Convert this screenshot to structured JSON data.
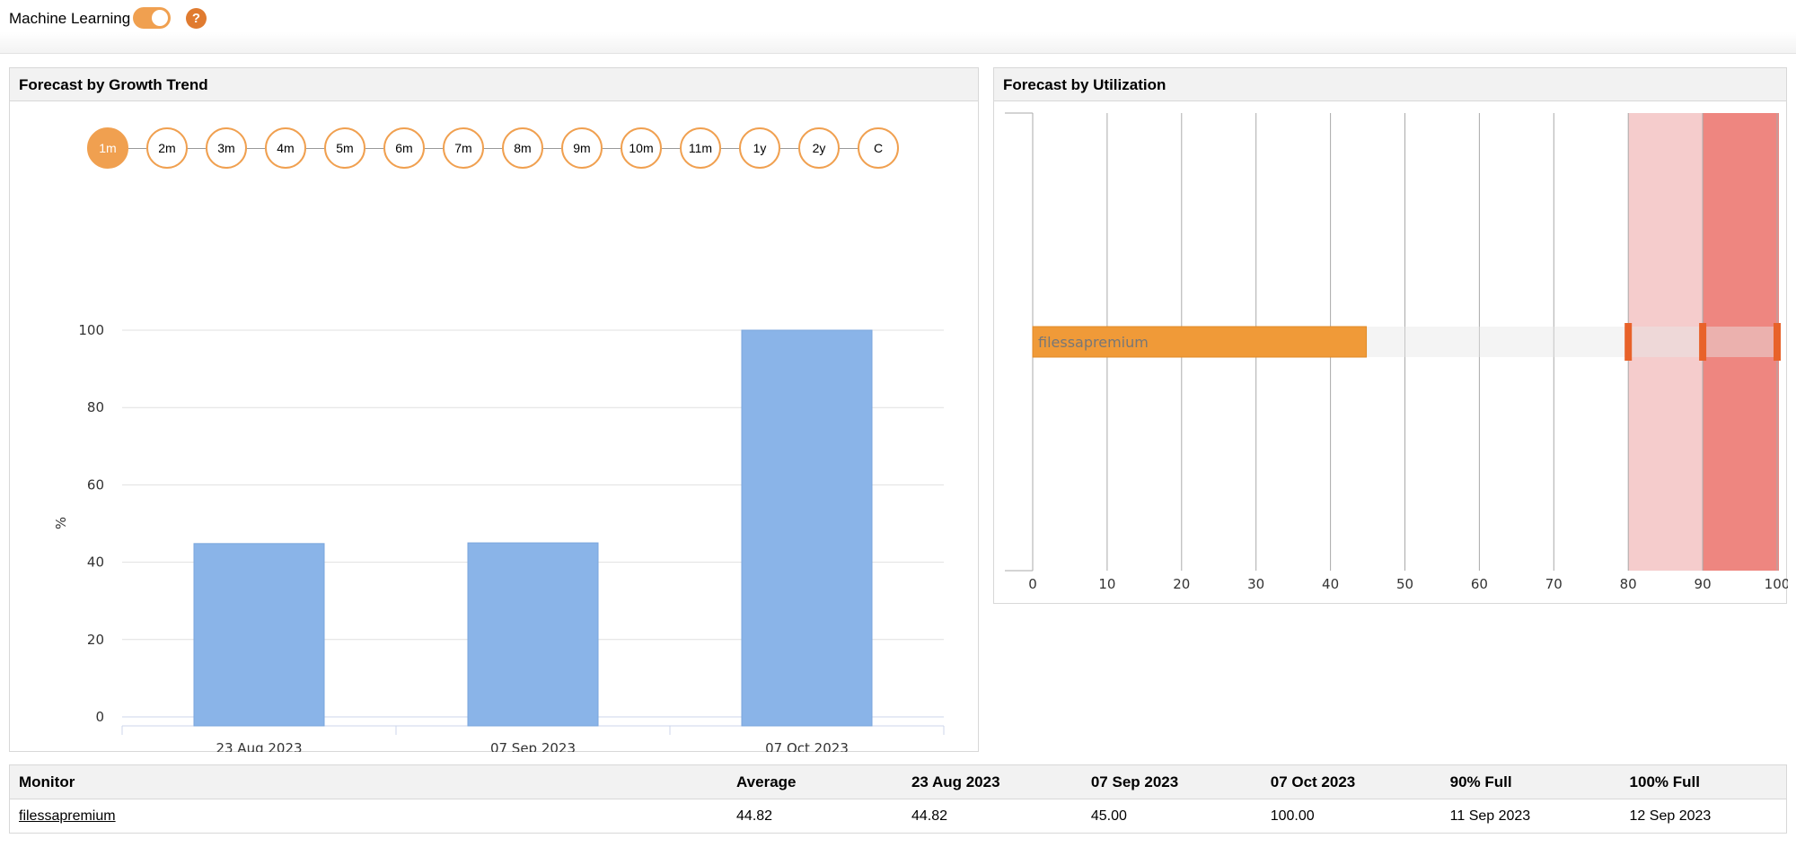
{
  "topbar": {
    "ml_label": "Machine Learning",
    "ml_enabled": true,
    "help": "?"
  },
  "growth": {
    "title": "Forecast by Growth Trend",
    "periods": [
      "1m",
      "2m",
      "3m",
      "4m",
      "5m",
      "6m",
      "7m",
      "8m",
      "9m",
      "10m",
      "11m",
      "1y",
      "2y",
      "C"
    ],
    "active_period": "1m"
  },
  "utilization": {
    "title": "Forecast by Utilization"
  },
  "chart_data": [
    {
      "type": "bar",
      "title": "Forecast by Growth Trend",
      "categories": [
        "23 Aug 2023",
        "07 Sep 2023",
        "07 Oct 2023"
      ],
      "values": [
        44.82,
        45.0,
        100.0
      ],
      "ylabel": "%",
      "xlabel": "",
      "ylim": [
        0,
        100
      ],
      "yticks": [
        "0",
        "20",
        "40",
        "60",
        "80",
        "100"
      ],
      "grid": true,
      "color": "#8ab4e8"
    },
    {
      "type": "bar",
      "orientation": "horizontal",
      "title": "Forecast by Utilization",
      "categories": [
        "filessapremium"
      ],
      "values": [
        44.82
      ],
      "xlim": [
        0,
        100
      ],
      "xticks": [
        "0",
        "10",
        "20",
        "30",
        "40",
        "50",
        "60",
        "70",
        "80",
        "90",
        "100"
      ],
      "bands": [
        {
          "from": 80,
          "to": 90,
          "color": "#f5cccc"
        },
        {
          "from": 90,
          "to": 100,
          "color": "#ee8680"
        }
      ],
      "markers": [
        80,
        90,
        100
      ],
      "color": "#f09a38"
    }
  ],
  "table": {
    "headers": [
      "Monitor",
      "Average",
      "23 Aug 2023",
      "07 Sep 2023",
      "07 Oct 2023",
      "90% Full",
      "100% Full"
    ],
    "rows": [
      [
        "filessapremium",
        "44.82",
        "44.82",
        "45.00",
        "100.00",
        "11 Sep 2023",
        "12 Sep 2023"
      ]
    ]
  }
}
